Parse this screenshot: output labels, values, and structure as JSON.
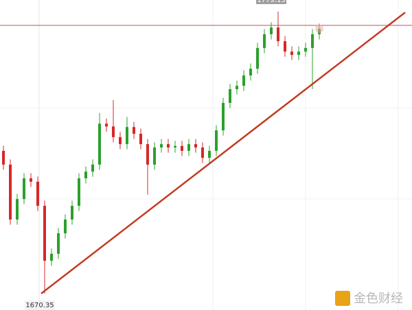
{
  "chart_data": {
    "type": "candlestick",
    "open": [
      1725.4,
      1720.1,
      1698.9,
      1706.8,
      1714.8,
      1713.5,
      1704.2,
      1683.0,
      1685.7,
      1693.6,
      1698.9,
      1704.2,
      1714.8,
      1717.4,
      1720.1,
      1735.9,
      1734.8,
      1730.7,
      1728.0,
      1734.6,
      1732.0,
      1728.0,
      1720.1,
      1726.7,
      1728.0,
      1726.7,
      1727.3,
      1725.4,
      1728.0,
      1726.7,
      1722.7,
      1725.4,
      1733.3,
      1743.9,
      1749.2,
      1750.5,
      1754.5,
      1757.1,
      1765.1,
      1770.4,
      1773.0,
      1767.7,
      1763.7,
      1762.4,
      1763.7,
      1765.1,
      1770.4
    ],
    "high": [
      1727.4,
      1722.1,
      1708.8,
      1716.8,
      1716.8,
      1715.5,
      1706.2,
      1687.7,
      1695.6,
      1700.9,
      1706.2,
      1716.8,
      1719.4,
      1722.1,
      1740.0,
      1737.9,
      1745.0,
      1732.7,
      1738.5,
      1736.6,
      1734.0,
      1730.0,
      1728.7,
      1730.0,
      1730.0,
      1729.3,
      1729.3,
      1730.0,
      1730.0,
      1728.7,
      1727.4,
      1735.3,
      1745.9,
      1751.2,
      1752.5,
      1756.5,
      1759.1,
      1767.1,
      1772.4,
      1775.0,
      1779.13,
      1769.7,
      1765.7,
      1765.7,
      1767.1,
      1772.4,
      1774.5
    ],
    "low": [
      1718.1,
      1696.9,
      1696.9,
      1704.8,
      1711.5,
      1702.2,
      1670.35,
      1681.0,
      1683.7,
      1691.6,
      1696.9,
      1702.2,
      1712.8,
      1715.4,
      1718.1,
      1732.8,
      1728.7,
      1726.0,
      1726.0,
      1730.0,
      1726.0,
      1708.5,
      1718.1,
      1724.7,
      1724.7,
      1724.7,
      1723.4,
      1723.4,
      1724.7,
      1720.7,
      1720.7,
      1723.4,
      1731.3,
      1741.9,
      1747.2,
      1748.5,
      1752.5,
      1755.1,
      1763.1,
      1768.4,
      1765.7,
      1761.7,
      1760.4,
      1760.4,
      1761.7,
      1749.2,
      1768.4
    ],
    "close": [
      1720.1,
      1698.9,
      1706.8,
      1714.8,
      1713.5,
      1704.2,
      1683.0,
      1685.7,
      1693.6,
      1698.9,
      1704.2,
      1714.8,
      1717.4,
      1720.1,
      1735.9,
      1734.8,
      1730.7,
      1728.0,
      1734.6,
      1732.0,
      1728.0,
      1720.1,
      1726.7,
      1728.0,
      1726.7,
      1727.3,
      1725.4,
      1728.0,
      1726.7,
      1722.7,
      1725.4,
      1733.3,
      1743.9,
      1749.2,
      1750.5,
      1754.5,
      1757.1,
      1765.1,
      1770.4,
      1773.0,
      1767.7,
      1763.7,
      1762.4,
      1763.7,
      1765.1,
      1770.4,
      1772.5
    ],
    "up_color": "#2ca02c",
    "down_color": "#d62728",
    "ylim": [
      1664,
      1783.6
    ],
    "high_label": 1779.13,
    "low_label": 1670.35,
    "price_line": 1773.8,
    "price_line_color": "#b5575a",
    "trend_line": [
      1670.35,
      1778.8
    ],
    "trend_line_color": "#c23b22",
    "watermark": "金色财经"
  }
}
